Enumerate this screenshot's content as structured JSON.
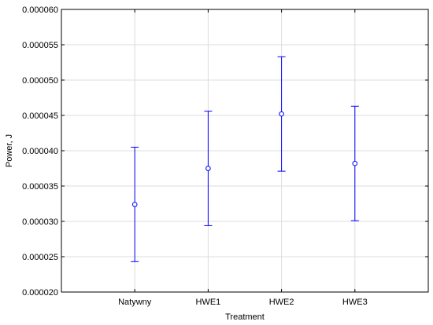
{
  "chart_data": {
    "type": "scatter",
    "title": "",
    "xlabel": "Treatment",
    "ylabel": "Power, J",
    "categories": [
      "Natywny",
      "HWE1",
      "HWE2",
      "HWE3"
    ],
    "ylim": [
      2e-05,
      6e-05
    ],
    "yticks": [
      "0.000020",
      "0.000025",
      "0.000030",
      "0.000035",
      "0.000040",
      "0.000045",
      "0.000050",
      "0.000055",
      "0.000060"
    ],
    "grid": true,
    "series": [
      {
        "values": [
          3.24e-05,
          3.75e-05,
          4.52e-05,
          3.82e-05
        ],
        "lower": [
          2.43e-05,
          2.94e-05,
          3.71e-05,
          3.01e-05
        ],
        "upper": [
          4.05e-05,
          4.56e-05,
          5.33e-05,
          4.63e-05
        ],
        "color": "#0000ff"
      }
    ]
  }
}
